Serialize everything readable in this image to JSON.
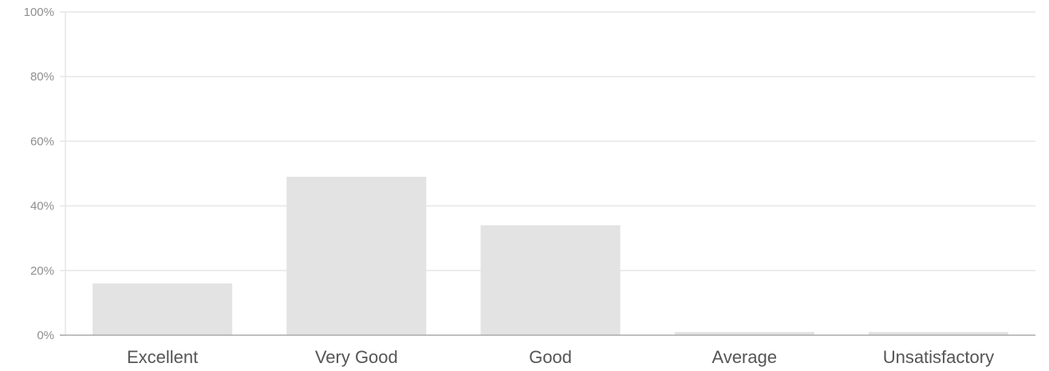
{
  "chart_data": {
    "type": "bar",
    "title": "",
    "xlabel": "",
    "ylabel": "",
    "categories": [
      "Excellent",
      "Very Good",
      "Good",
      "Average",
      "Unsatisfactory"
    ],
    "values": [
      16,
      49,
      34,
      1,
      1
    ],
    "ylim": [
      0,
      100
    ],
    "y_tick_values": [
      0,
      20,
      40,
      60,
      80,
      100
    ],
    "y_tick_labels": [
      "0%",
      "20%",
      "40%",
      "60%",
      "80%",
      "100%"
    ],
    "grid": true,
    "legend": "none"
  },
  "colors": {
    "bar": "#e3e3e3",
    "grid": "#e6e6e6",
    "axis": "#9a9a9a"
  }
}
